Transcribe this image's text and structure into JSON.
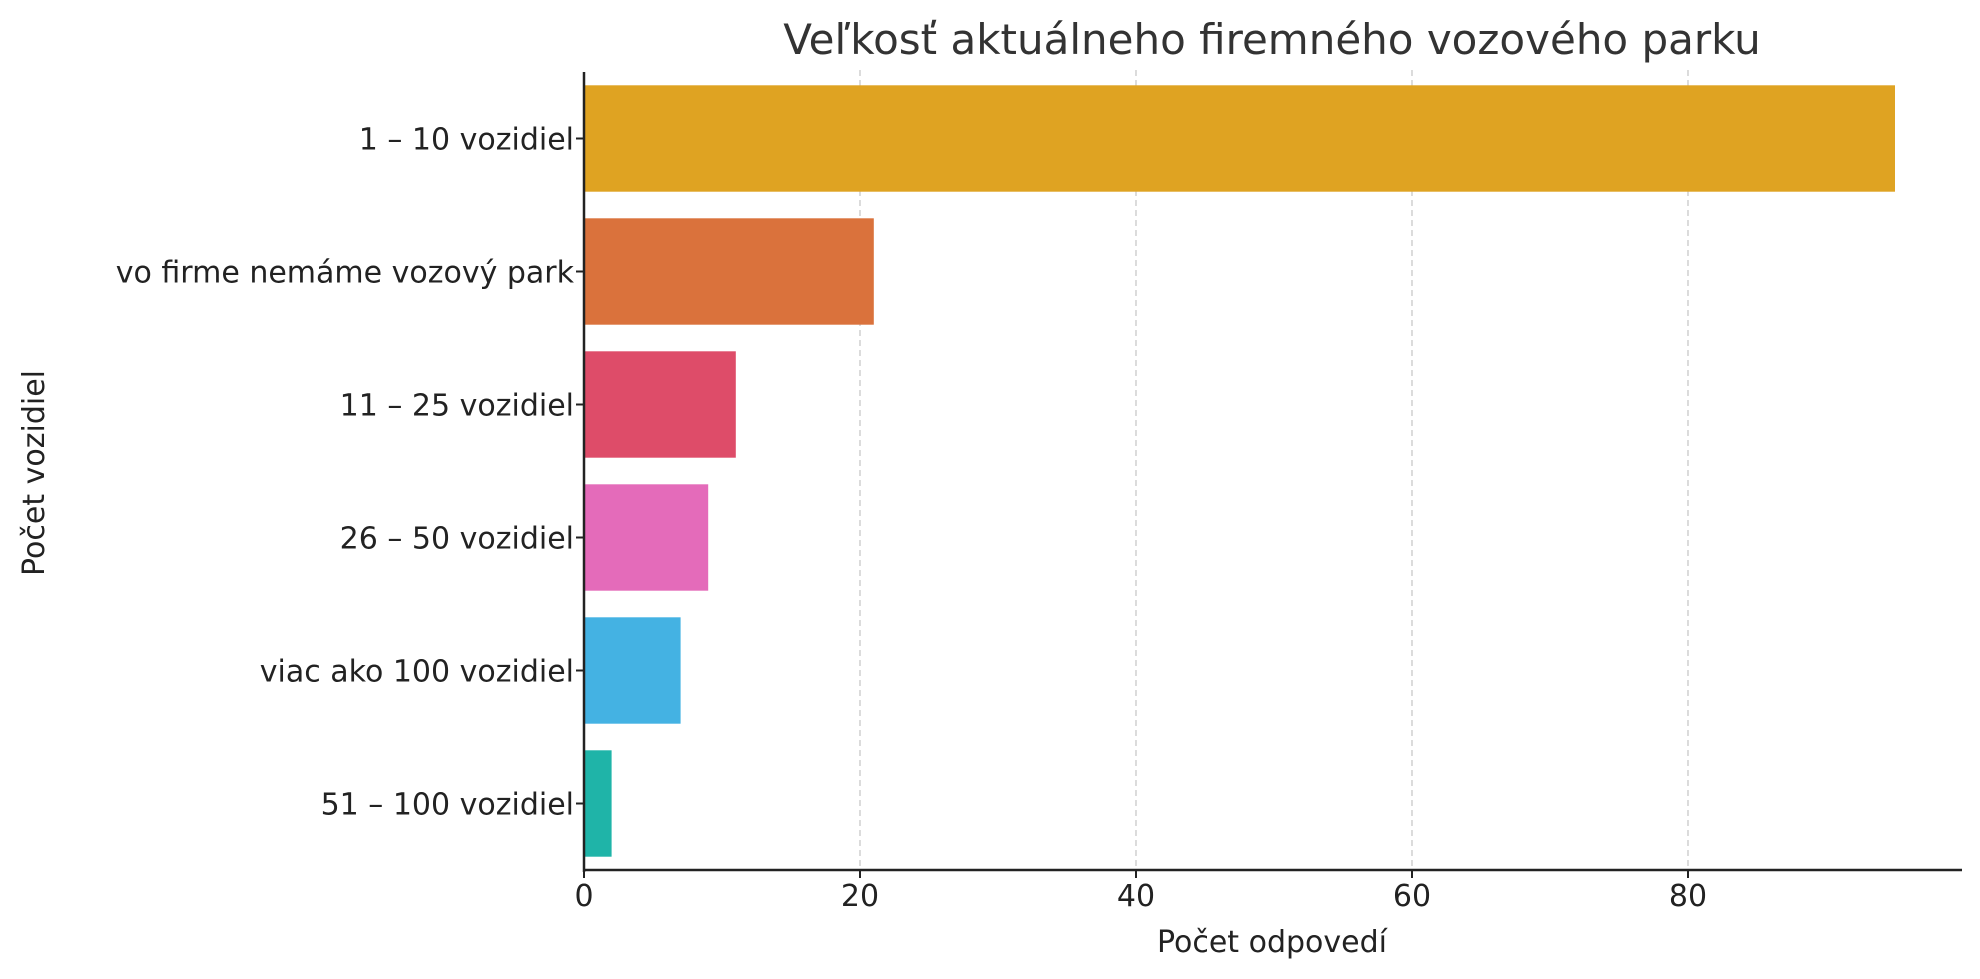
{
  "chart_data": {
    "type": "bar",
    "orientation": "horizontal",
    "title": "Veľkosť aktuálneho firemného vozového parku",
    "xlabel": "Počet odpovedí",
    "ylabel": "Počet vozidiel",
    "categories": [
      "1 – 10 vozidiel",
      "vo firme nemáme vozový park",
      "11 – 25 vozidiel",
      "26 – 50 vozidiel",
      "viac ako 100 vozidiel",
      "51 – 100 vozidiel"
    ],
    "values": [
      95,
      21,
      11,
      9,
      7,
      2
    ],
    "colors": [
      "#dfa322",
      "#da723c",
      "#de4c69",
      "#e46bba",
      "#44b2e3",
      "#1fb4a8"
    ],
    "xlim": [
      0,
      100
    ],
    "xticks": [
      0,
      20,
      40,
      60,
      80
    ],
    "grid": "x",
    "legend": "none"
  }
}
